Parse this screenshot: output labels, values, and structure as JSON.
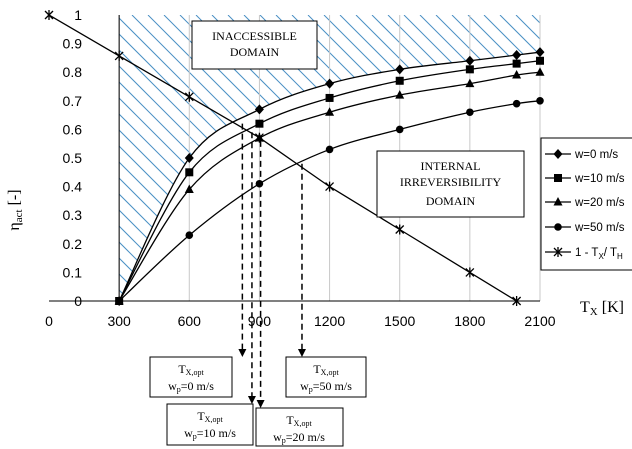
{
  "chart_data": {
    "type": "line",
    "title": "",
    "xlabel": "T",
    "xlabel_sub": "X",
    "xlabel_unit": "[K]",
    "ylabel": "η",
    "ylabel_sub": "act",
    "ylabel_unit": "[-]",
    "xlim": [
      0,
      2100
    ],
    "ylim": [
      0,
      1
    ],
    "x_ticks": [
      0,
      300,
      600,
      900,
      1200,
      1500,
      1800,
      2100
    ],
    "y_ticks": [
      0,
      0.1,
      0.2,
      0.3,
      0.4,
      0.5,
      0.6,
      0.7,
      0.8,
      0.9,
      1
    ],
    "grid": "vertical",
    "legend_position": "right",
    "series": [
      {
        "name": "w=0  m/s",
        "marker": "diamond",
        "x": [
          300,
          600,
          900,
          1200,
          1500,
          1800,
          2000,
          2100
        ],
        "y": [
          0,
          0.5,
          0.67,
          0.76,
          0.81,
          0.84,
          0.86,
          0.87
        ]
      },
      {
        "name": "w=10 m/s",
        "marker": "square",
        "x": [
          300,
          600,
          900,
          1200,
          1500,
          1800,
          2000,
          2100
        ],
        "y": [
          0,
          0.45,
          0.62,
          0.71,
          0.77,
          0.81,
          0.83,
          0.84
        ]
      },
      {
        "name": "w=20 m/s",
        "marker": "triangle",
        "x": [
          300,
          600,
          900,
          1200,
          1500,
          1800,
          2000,
          2100
        ],
        "y": [
          0,
          0.39,
          0.57,
          0.66,
          0.72,
          0.76,
          0.79,
          0.8
        ]
      },
      {
        "name": "w=50 m/s",
        "marker": "circle",
        "x": [
          300,
          600,
          900,
          1200,
          1500,
          1800,
          2000,
          2100
        ],
        "y": [
          0,
          0.23,
          0.41,
          0.53,
          0.6,
          0.66,
          0.69,
          0.7
        ]
      },
      {
        "name": "1 - T",
        "name_sub": "X",
        "name_tail": "/ T",
        "name_tail_sub": "H",
        "marker": "star",
        "x": [
          0,
          300,
          600,
          900,
          1200,
          1500,
          1800,
          2000
        ],
        "y": [
          1.0,
          0.857,
          0.714,
          0.571,
          0.4,
          0.25,
          0.1,
          0
        ]
      }
    ],
    "annotations": {
      "inaccessible": [
        "INACCESSIBLE",
        "DOMAIN"
      ],
      "internal": [
        "INTERNAL",
        "IRREVERSIBILITY",
        "DOMAIN"
      ],
      "optima": [
        {
          "t_sym": "T",
          "t_sub": "X,opt",
          "w_sym": "w",
          "w_sub": "p",
          "w_val": "=0 m/s",
          "x": 827,
          "y": 0.62
        },
        {
          "t_sym": "T",
          "t_sub": "X,opt",
          "w_sym": "w",
          "w_sub": "p",
          "w_val": "=10 m/s",
          "x": 868,
          "y": 0.59
        },
        {
          "t_sym": "T",
          "t_sub": "X,opt",
          "w_sym": "w",
          "w_sub": "p",
          "w_val": "=50 m/s",
          "x": 1082,
          "y": 0.48
        },
        {
          "t_sym": "T",
          "t_sub": "X,opt",
          "w_sym": "w",
          "w_sub": "p",
          "w_val": "=20 m/s",
          "x": 905,
          "y": 0.56
        }
      ]
    }
  }
}
